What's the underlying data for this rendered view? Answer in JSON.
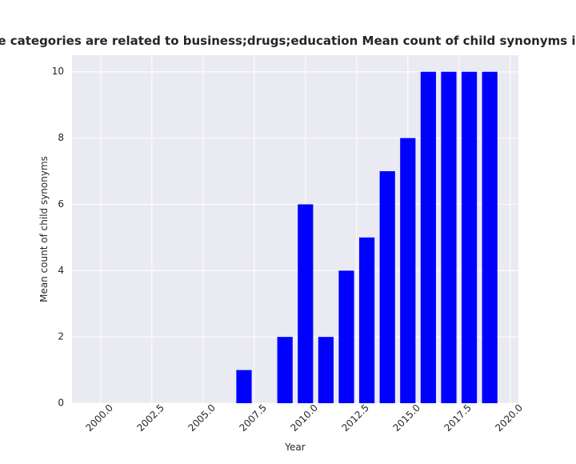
{
  "chart_data": {
    "type": "bar",
    "title": "Websites whose categories are related to business;drugs;education Mean count of child synonyms in privacy policies",
    "xlabel": "Year",
    "ylabel": "Mean count of child synonyms",
    "xlim": [
      1998.6,
      2020.4
    ],
    "ylim": [
      0,
      10.5
    ],
    "xticks": [
      2000.0,
      2002.5,
      2005.0,
      2007.5,
      2010.0,
      2012.5,
      2015.0,
      2017.5,
      2020.0
    ],
    "xtick_labels": [
      "2000.0",
      "2002.5",
      "2005.0",
      "2007.5",
      "2010.0",
      "2012.5",
      "2015.0",
      "2017.5",
      "2020.0"
    ],
    "yticks": [
      0,
      2,
      4,
      6,
      8,
      10
    ],
    "ytick_labels": [
      "0",
      "2",
      "4",
      "6",
      "8",
      "10"
    ],
    "grid": true,
    "x": [
      2000,
      2001,
      2002,
      2003,
      2004,
      2005,
      2006,
      2007,
      2008,
      2009,
      2010,
      2011,
      2012,
      2013,
      2014,
      2015,
      2016,
      2017,
      2018,
      2019
    ],
    "values": [
      0,
      0,
      0,
      0,
      0,
      0,
      0,
      1,
      0,
      2,
      6,
      2,
      4,
      5,
      7,
      8,
      10,
      10,
      10,
      10
    ],
    "bar_width": 0.75,
    "colors": {
      "bar": "#0000ff",
      "plot_background": "#eaeaf2",
      "grid": "#ffffff",
      "text": "#262626"
    }
  }
}
